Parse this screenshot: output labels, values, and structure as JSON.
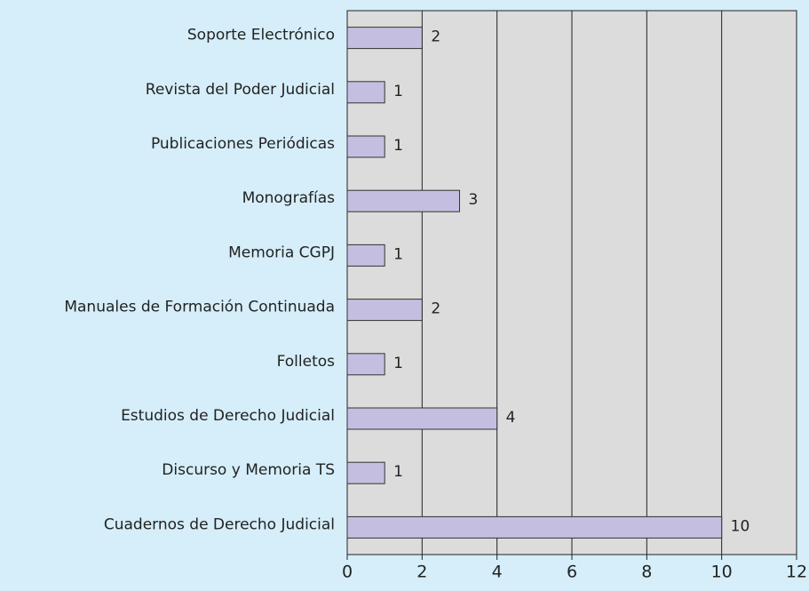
{
  "chart_data": {
    "type": "barh",
    "categories": [
      "Soporte Electrónico",
      "Revista del Poder Judicial",
      "Publicaciones Periódicas",
      "Monografías",
      "Memoria CGPJ",
      "Manuales de Formación Continuada",
      "Folletos",
      "Estudios de Derecho Judicial",
      "Discurso y Memoria TS",
      "Cuadernos de Derecho Judicial"
    ],
    "values": [
      2,
      1,
      1,
      3,
      1,
      2,
      1,
      4,
      1,
      10
    ],
    "color": "#c4bfe0",
    "xlim": [
      0,
      12
    ],
    "xticks": [
      0,
      2,
      4,
      6,
      8,
      10,
      12
    ],
    "grid": true
  }
}
